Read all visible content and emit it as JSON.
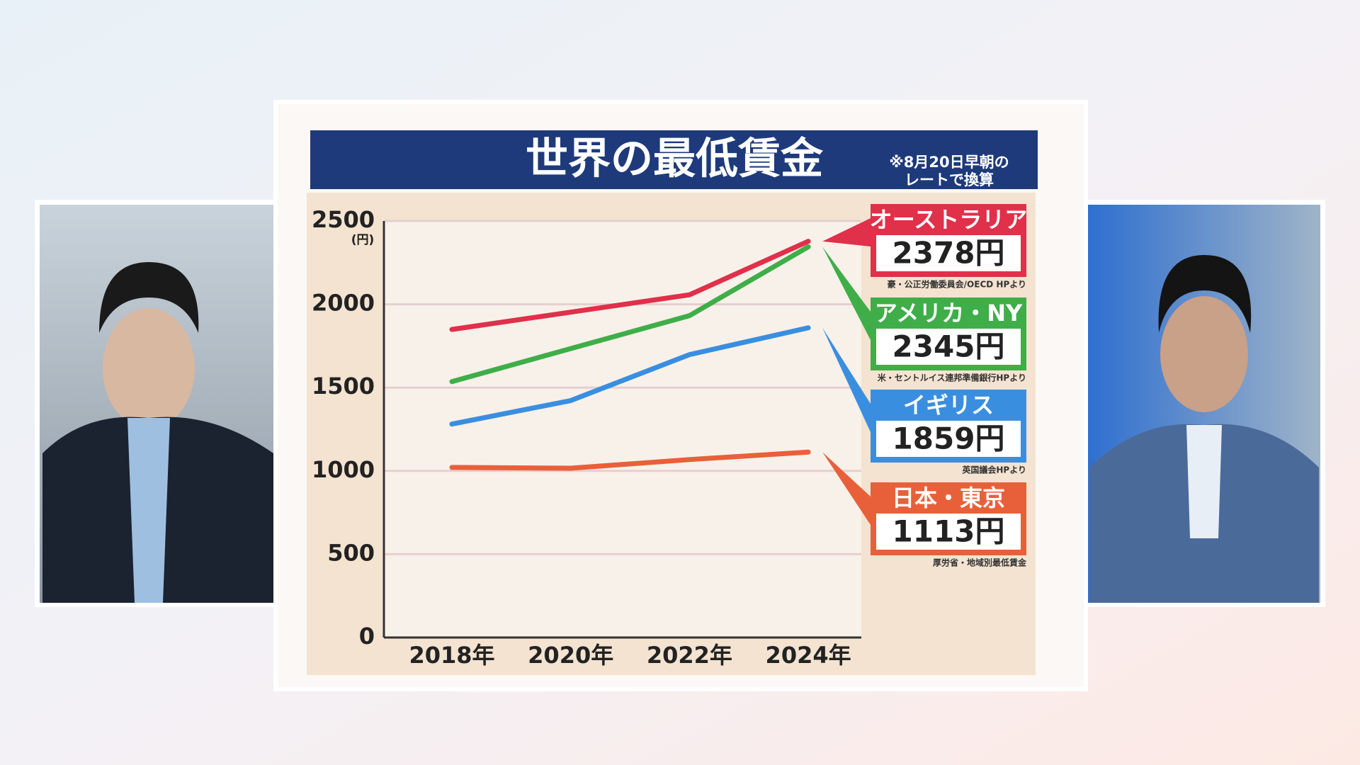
{
  "chart_data": {
    "type": "line",
    "title": "世界の最低賃金",
    "note": [
      "※8月20日早朝の",
      "レートで換算"
    ],
    "y_label": "(円)",
    "categories": [
      "2018年",
      "2020年",
      "2022年",
      "2024年"
    ],
    "ylim": [
      0,
      2500
    ],
    "yticks": [
      0,
      500,
      1000,
      1500,
      2000,
      2500
    ],
    "grid": true,
    "series": [
      {
        "name": "オーストラリア",
        "color": "#e0304a",
        "values": [
          1849,
          1953,
          2057,
          2378
        ],
        "value_labels": [
          null,
          null,
          null,
          "2378円"
        ],
        "source": "豪・公正労働委員会/OECD HPより"
      },
      {
        "name": "アメリカ・NY",
        "color": "#3fae49",
        "values": [
          1536,
          1734,
          1932,
          2345
        ],
        "value_labels": [
          null,
          null,
          null,
          "2345円"
        ],
        "source": "米・セントルイス連邦準備銀行HPより"
      },
      {
        "name": "イギリス",
        "color": "#3a8ee0",
        "values": [
          1281,
          1422,
          1698,
          1859
        ],
        "value_labels": [
          null,
          null,
          null,
          "1859円"
        ],
        "source": "英国議会HPより"
      },
      {
        "name": "日本・東京",
        "color": "#e8603a",
        "values": [
          1021,
          1016,
          1068,
          1113
        ],
        "value_labels": [
          null,
          null,
          null,
          "1113円"
        ],
        "source": "厚労省・地域別最低賃金"
      }
    ]
  }
}
